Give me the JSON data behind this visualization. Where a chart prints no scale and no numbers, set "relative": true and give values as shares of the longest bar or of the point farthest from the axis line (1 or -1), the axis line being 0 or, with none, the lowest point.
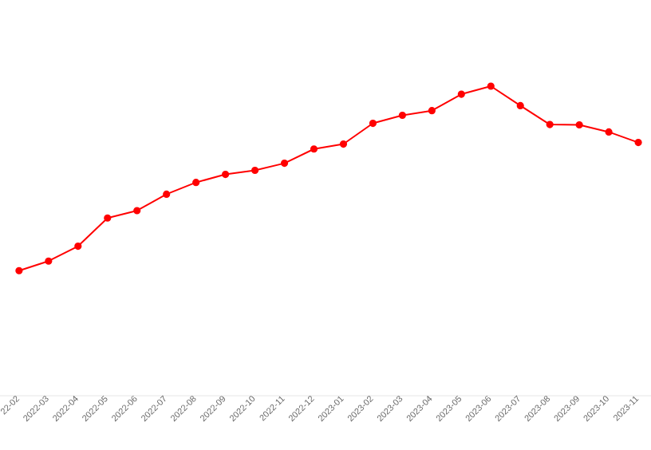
{
  "chart_data": {
    "type": "line",
    "relative": true,
    "marker": "circle",
    "line_style": "solid",
    "categories": [
      "22-02",
      "2022-03",
      "2022-04",
      "2022-05",
      "2022-06",
      "2022-07",
      "2022-08",
      "2022-09",
      "2022-10",
      "2022-11",
      "2022-12",
      "2023-01",
      "2023-02",
      "2023-03",
      "2023-04",
      "2023-05",
      "2023-06",
      "2023-07",
      "2023-08",
      "2023-09",
      "2023-10",
      "2023-11"
    ],
    "series": [
      {
        "color": "#ff0000",
        "values": [
          0.404,
          0.435,
          0.483,
          0.574,
          0.598,
          0.651,
          0.689,
          0.715,
          0.728,
          0.751,
          0.797,
          0.813,
          0.88,
          0.906,
          0.921,
          0.974,
          1,
          0.937,
          0.876,
          0.875,
          0.852,
          0.818
        ]
      }
    ]
  }
}
